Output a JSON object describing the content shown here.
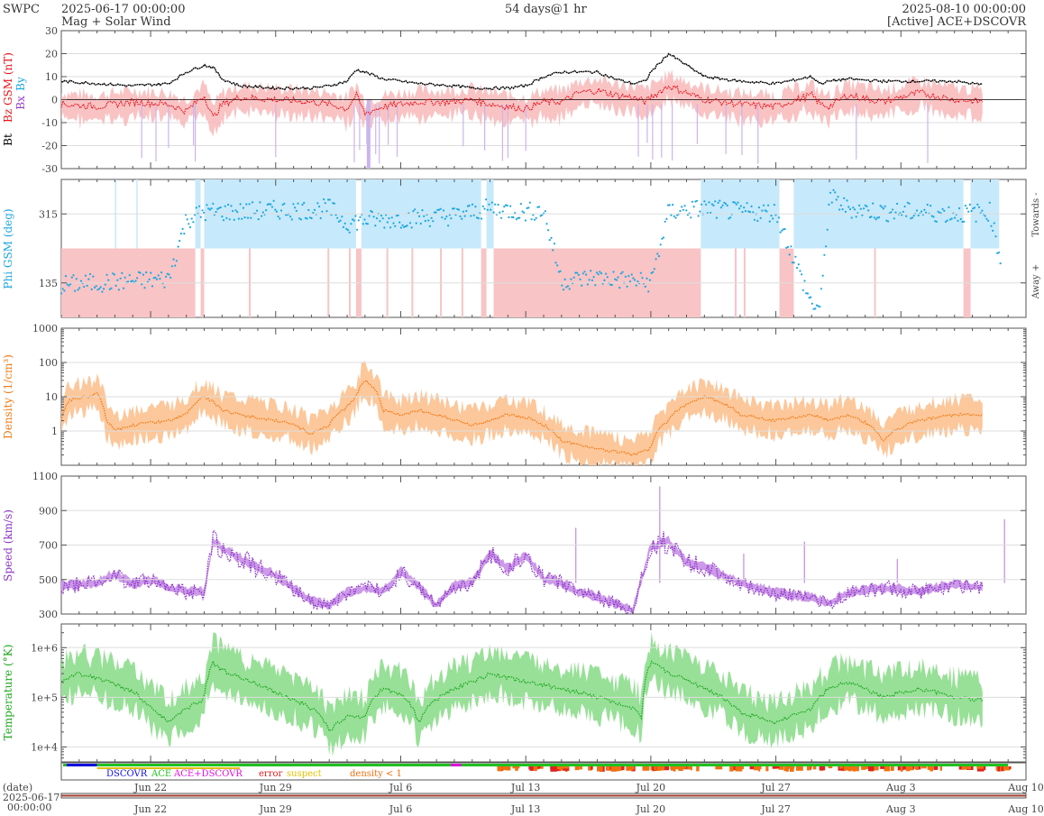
{
  "header": {
    "org": "SWPC",
    "start": "2025-06-17 00:00:00",
    "product": "Mag + Solar Wind",
    "span": "54 days@1 hr",
    "end": "2025-08-10 00:00:00",
    "source": "[Active] ACE+DSCOVR"
  },
  "colors": {
    "bt": "#000000",
    "bz": "#e8141b",
    "by": "#1aa6e0",
    "bx": "#9540c8",
    "phi_towards": "#c6e9fb",
    "phi_away": "#f8c4c6",
    "phi_points": "#1aa6e0",
    "density": "#f07a14",
    "density_band": "#fcc79a",
    "speed": "#8b32c6",
    "speed_band": "#cc9ae8",
    "temperature": "#20a820",
    "temperature_band": "#98e098",
    "source_dscovr": "#1010e0",
    "source_ace": "#20c020",
    "source_both": "#e010e0",
    "error": "#e02020",
    "suspect": "#e0c000",
    "density_lt1": "#f07010"
  },
  "panels": {
    "mag": {
      "ylabels": [
        "Bt",
        "Bz GSM (nT)",
        "Bx",
        "By"
      ]
    },
    "phi": {
      "ylabel": "Phi GSM (deg)",
      "towards": "Towards -",
      "away": "Away +"
    },
    "density": {
      "ylabel": "Density (1/cm³)"
    },
    "speed": {
      "ylabel": "Speed (km/s)"
    },
    "temperature": {
      "ylabel": "Temperature (°K)"
    }
  },
  "legend": {
    "dscovr": "DSCOVR",
    "ace": "ACE",
    "both": "ACE+DSCOVR",
    "error": "error",
    "suspect": "suspect",
    "density_lt1": "density < 1"
  },
  "xaxis": {
    "date_label": "(date)",
    "start_date": "2025-06-17",
    "start_time": "00:00:00",
    "ticks": [
      "Jun 22",
      "Jun 29",
      "Jul 6",
      "Jul 13",
      "Jul 20",
      "Jul 27",
      "Aug 3",
      "Aug 10"
    ]
  },
  "chart_data": [
    {
      "type": "line",
      "title": "Mag",
      "ylabel": "Bz GSM (nT)",
      "ylim": [
        -30,
        30
      ],
      "yticks": [
        "30",
        "20",
        "10",
        "0",
        "-10",
        "-20",
        "-30"
      ],
      "x_days": [
        0,
        2,
        4,
        6,
        7,
        8,
        8.5,
        9,
        10,
        12,
        14,
        15,
        16,
        16.5,
        17,
        18,
        20,
        22,
        23,
        24,
        25,
        26,
        27,
        28,
        29,
        30,
        31,
        32,
        32.7,
        33,
        34,
        36,
        38,
        40,
        42,
        42.5,
        43,
        44,
        46,
        48,
        50,
        52,
        53,
        54
      ],
      "series": [
        {
          "name": "Bt",
          "values": [
            8,
            7,
            6,
            7,
            12,
            15,
            14,
            9,
            6,
            5,
            5,
            6,
            8,
            13,
            12,
            9,
            7,
            6,
            5,
            5,
            5,
            6,
            10,
            12,
            12,
            12,
            9,
            7,
            8,
            12,
            20,
            10,
            8,
            7,
            10,
            7,
            8,
            9,
            8,
            8,
            8,
            6,
            6,
            6
          ]
        },
        {
          "name": "Bz GSM",
          "values": [
            -2,
            -3,
            -1,
            -2,
            -5,
            2,
            -8,
            -2,
            1,
            0,
            -1,
            -2,
            -4,
            2,
            -6,
            -3,
            -1,
            -1,
            0,
            -2,
            -3,
            -4,
            -1,
            -1,
            3,
            4,
            2,
            1,
            -1,
            1,
            6,
            0,
            -2,
            -3,
            2,
            -2,
            -3,
            2,
            -1,
            3,
            0,
            -1,
            0,
            -1
          ]
        }
      ]
    },
    {
      "type": "scatter",
      "title": "Phi",
      "ylabel": "Phi GSM (deg)",
      "ylim": [
        45,
        405
      ],
      "yticks": [
        "315",
        "135"
      ],
      "x_days": [
        0,
        2,
        4,
        6,
        7,
        8,
        10,
        12,
        14,
        15,
        16,
        17,
        18,
        20,
        22,
        24,
        26,
        27,
        28,
        30,
        32,
        33,
        34,
        36,
        38,
        40,
        42,
        42.5,
        43,
        44,
        46,
        48,
        50,
        52,
        53,
        54
      ],
      "values": [
        130,
        135,
        140,
        145,
        300,
        320,
        320,
        325,
        325,
        330,
        290,
        300,
        300,
        305,
        310,
        330,
        320,
        325,
        140,
        150,
        140,
        135,
        320,
        330,
        320,
        320,
        80,
        70,
        360,
        330,
        320,
        320,
        315,
        320,
        100,
        300
      ]
    },
    {
      "type": "line",
      "title": "Density",
      "ylabel": "Density (1/cm³)",
      "ylim": [
        0.1,
        1000
      ],
      "log_y": true,
      "yticks": [
        "1000",
        "100",
        "10",
        "1"
      ],
      "x_days": [
        0,
        0.5,
        1.5,
        2,
        2.5,
        3,
        4,
        6,
        7,
        8,
        9,
        10,
        12,
        13,
        14,
        15,
        16,
        16.5,
        17,
        18,
        19,
        20,
        21,
        22,
        23,
        24,
        25,
        26,
        28,
        30,
        32,
        33,
        34,
        36,
        38,
        40,
        42,
        43,
        44,
        46,
        48,
        50,
        52,
        53,
        54
      ],
      "values": [
        2,
        8,
        10,
        12,
        2,
        1,
        1.5,
        2,
        3,
        10,
        4,
        3,
        2,
        1.5,
        0.8,
        1.5,
        5,
        10,
        30,
        4,
        3,
        4,
        3,
        2,
        1.5,
        2,
        3,
        2.5,
        0.5,
        0.3,
        0.2,
        0.3,
        2,
        10,
        3,
        2,
        3,
        2,
        3,
        0.5,
        2,
        3,
        3,
        2.5,
        3
      ]
    },
    {
      "type": "line",
      "title": "Speed",
      "ylabel": "Speed (km/s)",
      "ylim": [
        300,
        1100
      ],
      "yticks": [
        "1100",
        "900",
        "700",
        "500",
        "300"
      ],
      "x_days": [
        0,
        2,
        3,
        4,
        5,
        6,
        7,
        8,
        8.5,
        9,
        10,
        12,
        14,
        15,
        16,
        17,
        18,
        19,
        20,
        21,
        22,
        23,
        24,
        25,
        26,
        27,
        28,
        29,
        30,
        31,
        32,
        33,
        34,
        35,
        36,
        38,
        40,
        42,
        43,
        44,
        46,
        48,
        50,
        52,
        53,
        54
      ],
      "values": [
        460,
        480,
        530,
        470,
        500,
        450,
        430,
        420,
        720,
        680,
        620,
        520,
        370,
        350,
        420,
        450,
        430,
        540,
        460,
        350,
        460,
        480,
        650,
        560,
        640,
        500,
        480,
        420,
        400,
        360,
        320,
        690,
        720,
        600,
        570,
        480,
        420,
        390,
        360,
        420,
        450,
        430,
        470,
        450,
        420,
        380
      ]
    },
    {
      "type": "line",
      "title": "Temperature",
      "ylabel": "Temperature (°K)",
      "ylim": [
        5000,
        3000000
      ],
      "log_y": true,
      "yticks": [
        "1e+6",
        "1e+5",
        "1e+4"
      ],
      "x_days": [
        0,
        1,
        2,
        3,
        4,
        5,
        6,
        7,
        8,
        8.5,
        9,
        10,
        12,
        14,
        15,
        16,
        17,
        18,
        19,
        20,
        22,
        23,
        24,
        26,
        28,
        30,
        32,
        32.5,
        33,
        34,
        36,
        38,
        40,
        42,
        43,
        44,
        46,
        48,
        50,
        52,
        54
      ],
      "values": [
        200000,
        300000,
        250000,
        180000,
        130000,
        60000,
        30000,
        60000,
        90000,
        500000,
        350000,
        250000,
        120000,
        60000,
        20000,
        40000,
        40000,
        150000,
        120000,
        30000,
        150000,
        200000,
        300000,
        200000,
        150000,
        100000,
        60000,
        40000,
        500000,
        300000,
        150000,
        50000,
        30000,
        60000,
        150000,
        200000,
        100000,
        150000,
        100000,
        80000,
        70000
      ]
    }
  ]
}
